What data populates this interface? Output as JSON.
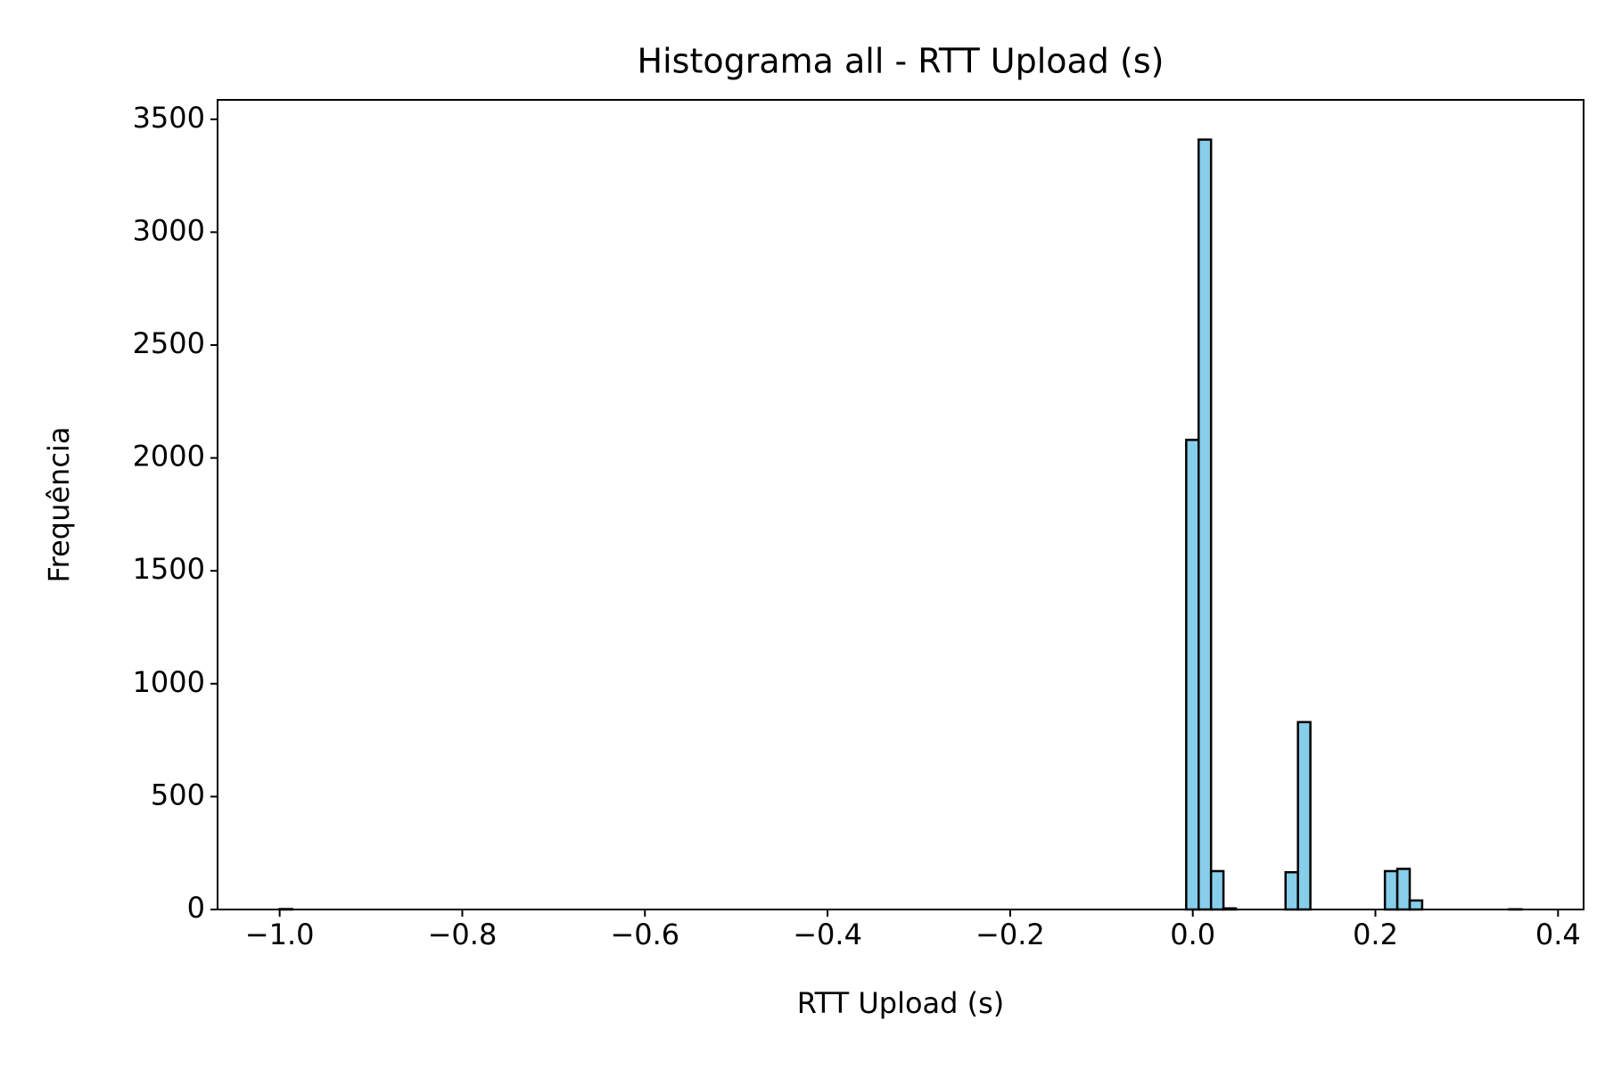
{
  "chart_data": {
    "type": "histogram",
    "title": "Histograma all - RTT Upload (s)",
    "x_label": "RTT Upload (s)",
    "y_label": "Frequência",
    "color": "#87ceeb",
    "edgecolor": "#000000",
    "bins": [
      -1,
      -0.9864,
      -0.9728,
      -0.9592,
      -0.9456,
      -0.932,
      -0.9184,
      -0.9048,
      -0.8912,
      -0.8776,
      -0.864,
      -0.8504,
      -0.8368,
      -0.8232,
      -0.8096,
      -0.796,
      -0.7824,
      -0.7688,
      -0.7552,
      -0.7416,
      -0.728,
      -0.7144,
      -0.7008,
      -0.6872,
      -0.6736,
      -0.66,
      -0.6464,
      -0.6328,
      -0.6192,
      -0.6056,
      -0.592,
      -0.5784,
      -0.5648,
      -0.5512,
      -0.5376,
      -0.524,
      -0.5104,
      -0.4968,
      -0.4832,
      -0.4696,
      -0.456,
      -0.4424,
      -0.4288,
      -0.4152,
      -0.4016,
      -0.388,
      -0.3744,
      -0.3608,
      -0.3472,
      -0.3336,
      -0.32,
      -0.3064,
      -0.2928,
      -0.2792,
      -0.2656,
      -0.252,
      -0.2384,
      -0.2248,
      -0.2112,
      -0.1976,
      -0.184,
      -0.1704,
      -0.1568,
      -0.1432,
      -0.1296,
      -0.116,
      -0.1024,
      -0.0888,
      -0.0752,
      -0.0616,
      -0.048,
      -0.0344,
      -0.0208,
      -0.0072,
      0.0064,
      0.02,
      0.0336,
      0.0472,
      0.0608,
      0.0744,
      0.088,
      0.1016,
      0.1152,
      0.1288,
      0.1424,
      0.156,
      0.1696,
      0.1832,
      0.1968,
      0.2104,
      0.224,
      0.2376,
      0.2512,
      0.2648,
      0.2784,
      0.292,
      0.3056,
      0.3192,
      0.3328,
      0.3464,
      0.36
    ],
    "values": [
      2,
      0,
      0,
      0,
      0,
      0,
      0,
      0,
      0,
      0,
      0,
      0,
      0,
      0,
      0,
      0,
      0,
      0,
      0,
      0,
      0,
      0,
      0,
      0,
      0,
      0,
      0,
      0,
      0,
      0,
      0,
      0,
      0,
      0,
      0,
      0,
      0,
      0,
      0,
      0,
      0,
      0,
      0,
      0,
      0,
      0,
      0,
      0,
      0,
      0,
      0,
      0,
      0,
      0,
      0,
      0,
      0,
      0,
      0,
      0,
      0,
      0,
      0,
      0,
      0,
      0,
      0,
      0,
      0,
      0,
      0,
      0,
      0,
      2080,
      3410,
      170,
      5,
      0,
      0,
      0,
      0,
      165,
      830,
      0,
      0,
      0,
      0,
      0,
      0,
      170,
      180,
      40,
      0,
      0,
      0,
      0,
      0,
      0,
      0,
      1
    ],
    "xlim": [
      -1.068,
      0.428
    ],
    "ylim": [
      0,
      3586
    ],
    "xticks": [
      {
        "value": -1.0,
        "label": "−1.0"
      },
      {
        "value": -0.8,
        "label": "−0.8"
      },
      {
        "value": -0.6,
        "label": "−0.6"
      },
      {
        "value": -0.4,
        "label": "−0.4"
      },
      {
        "value": -0.2,
        "label": "−0.2"
      },
      {
        "value": 0.0,
        "label": "0.0"
      },
      0.2,
      0.4
    ],
    "yticks": [
      0,
      500,
      1000,
      1500,
      2000,
      2500,
      3000,
      3500
    ]
  }
}
